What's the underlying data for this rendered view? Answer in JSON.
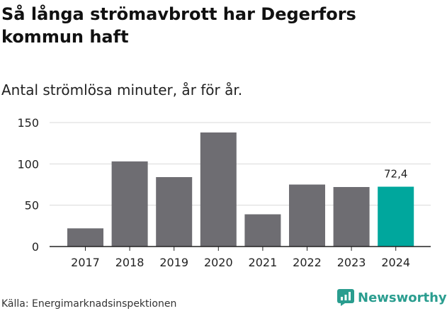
{
  "title": "Så långa strömavbrott har Degerfors kommun haft",
  "subtitle": "Antal strömlösa minuter, år för år.",
  "source": "Källa: Energimarknadsinspektionen",
  "brand": {
    "name": "Newsworthy",
    "icon": "newsworthy-logo-icon",
    "color": "#2a9d8f"
  },
  "colors": {
    "bar": "#6e6d72",
    "highlight": "#00a79d",
    "grid": "#d9d9d9",
    "axis": "#222222"
  },
  "chart_data": {
    "type": "bar",
    "title": "Så långa strömavbrott har Degerfors kommun haft",
    "subtitle": "Antal strömlösa minuter, år för år.",
    "xlabel": "",
    "ylabel": "",
    "categories": [
      "2017",
      "2018",
      "2019",
      "2020",
      "2021",
      "2022",
      "2023",
      "2024"
    ],
    "values": [
      22,
      103,
      84,
      138,
      39,
      75,
      72,
      72.4
    ],
    "highlight_index": 7,
    "data_labels": [
      {
        "index": 7,
        "text": "72,4"
      }
    ],
    "yticks": [
      0,
      50,
      100,
      150
    ],
    "ytick_labels": [
      "0",
      "50",
      "100",
      "150"
    ],
    "ylim": [
      0,
      150
    ],
    "grid": true,
    "legend": "none"
  }
}
